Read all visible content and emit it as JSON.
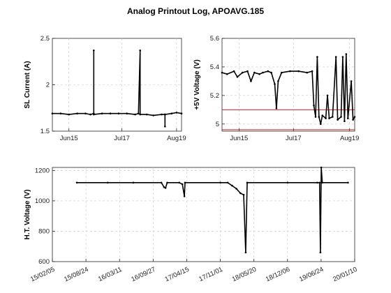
{
  "figure": {
    "title": "Analog Printout Log, APOAVG.185",
    "background": "#ffffff",
    "axis_color": "#262626",
    "grid_color": "#c8c8c8",
    "series_color": "#000000",
    "limit_color": "#c00000"
  },
  "chart_data": [
    {
      "type": "line",
      "panel": "top-left",
      "title": "",
      "ylabel": "SL Current (A)",
      "xlabel": "",
      "x_is_date": true,
      "xlim": [
        "2019-06-05",
        "2019-08-22"
      ],
      "ylim": [
        1.5,
        2.5
      ],
      "xticks": [
        {
          "value": "2019-06-15",
          "label": "Jun15"
        },
        {
          "value": "2019-07-17",
          "label": "Jul17"
        },
        {
          "value": "2019-08-19",
          "label": "Aug19"
        }
      ],
      "yticks": [
        {
          "value": 1.5,
          "label": "1.5"
        },
        {
          "value": 2,
          "label": "2"
        },
        {
          "value": 2.5,
          "label": "2.5"
        }
      ],
      "grid": true,
      "series": [
        {
          "values": [
            [
              "2019-06-05",
              1.69
            ],
            [
              "2019-06-10",
              1.69
            ],
            [
              "2019-06-15",
              1.68
            ],
            [
              "2019-06-20",
              1.69
            ],
            [
              "2019-06-25",
              1.69
            ],
            [
              "2019-06-28",
              1.68
            ],
            [
              "2019-06-30",
              1.69
            ],
            [
              "2019-06-30",
              2.37
            ],
            [
              "2019-06-30",
              1.68
            ],
            [
              "2019-07-05",
              1.69
            ],
            [
              "2019-07-10",
              1.69
            ],
            [
              "2019-07-15",
              1.69
            ],
            [
              "2019-07-20",
              1.69
            ],
            [
              "2019-07-25",
              1.68
            ],
            [
              "2019-07-27",
              1.69
            ],
            [
              "2019-07-28",
              2.37
            ],
            [
              "2019-07-28",
              1.68
            ],
            [
              "2019-08-01",
              1.68
            ],
            [
              "2019-08-05",
              1.67
            ],
            [
              "2019-08-10",
              1.68
            ],
            [
              "2019-08-12",
              1.68
            ],
            [
              "2019-08-12",
              1.55
            ],
            [
              "2019-08-12",
              1.68
            ],
            [
              "2019-08-16",
              1.69
            ],
            [
              "2019-08-19",
              1.7
            ],
            [
              "2019-08-22",
              1.69
            ]
          ]
        }
      ]
    },
    {
      "type": "line",
      "panel": "top-right",
      "title": "",
      "ylabel": "+5V Voltage (V)",
      "xlabel": "",
      "x_is_date": true,
      "xlim": [
        "2019-06-05",
        "2019-08-22"
      ],
      "ylim": [
        4.95,
        5.6
      ],
      "xticks": [
        {
          "value": "2019-06-15",
          "label": "Jun15"
        },
        {
          "value": "2019-07-17",
          "label": "Jul17"
        },
        {
          "value": "2019-08-19",
          "label": "Aug19"
        }
      ],
      "yticks": [
        {
          "value": 5,
          "label": "5"
        },
        {
          "value": 5.2,
          "label": "5.2"
        },
        {
          "value": 5.4,
          "label": "5.4"
        },
        {
          "value": 5.6,
          "label": "5.6"
        }
      ],
      "grid": true,
      "limits": [
        5.1,
        4.96
      ],
      "series": [
        {
          "values": [
            [
              "2019-06-05",
              5.36
            ],
            [
              "2019-06-08",
              5.35
            ],
            [
              "2019-06-12",
              5.37
            ],
            [
              "2019-06-14",
              5.33
            ],
            [
              "2019-06-17",
              5.36
            ],
            [
              "2019-06-20",
              5.37
            ],
            [
              "2019-06-22",
              5.3
            ],
            [
              "2019-06-24",
              5.36
            ],
            [
              "2019-06-27",
              5.35
            ],
            [
              "2019-06-29",
              5.36
            ],
            [
              "2019-07-02",
              5.37
            ],
            [
              "2019-07-04",
              5.36
            ],
            [
              "2019-07-06",
              5.28
            ],
            [
              "2019-07-07",
              5.11
            ],
            [
              "2019-07-08",
              5.3
            ],
            [
              "2019-07-10",
              5.36
            ],
            [
              "2019-07-15",
              5.37
            ],
            [
              "2019-07-20",
              5.37
            ],
            [
              "2019-07-25",
              5.36
            ],
            [
              "2019-07-28",
              5.37
            ],
            [
              "2019-07-29",
              5.13
            ],
            [
              "2019-07-30",
              5.05
            ],
            [
              "2019-07-31",
              5.47
            ],
            [
              "2019-08-01",
              5.05
            ],
            [
              "2019-08-02",
              5.0
            ],
            [
              "2019-08-03",
              5.06
            ],
            [
              "2019-08-05",
              5.04
            ],
            [
              "2019-08-06",
              5.2
            ],
            [
              "2019-08-07",
              5.04
            ],
            [
              "2019-08-09",
              5.05
            ],
            [
              "2019-08-11",
              5.47
            ],
            [
              "2019-08-12",
              5.03
            ],
            [
              "2019-08-14",
              5.05
            ],
            [
              "2019-08-15",
              5.47
            ],
            [
              "2019-08-16",
              5.02
            ],
            [
              "2019-08-17",
              5.49
            ],
            [
              "2019-08-18",
              5.04
            ],
            [
              "2019-08-20",
              5.3
            ],
            [
              "2019-08-21",
              5.03
            ],
            [
              "2019-08-22",
              5.05
            ]
          ]
        }
      ]
    },
    {
      "type": "line",
      "panel": "bottom",
      "title": "",
      "ylabel": "H.T. Voltage (V)",
      "xlabel": "",
      "x_is_date": true,
      "xlim": [
        "2015-02-05",
        "2020-01-10"
      ],
      "ylim": [
        600,
        1220
      ],
      "xticks": [
        {
          "value": "2015-02-05",
          "label": "15/02/05"
        },
        {
          "value": "2015-08-24",
          "label": "15/08/24"
        },
        {
          "value": "2016-03-11",
          "label": "16/03/11"
        },
        {
          "value": "2016-09-27",
          "label": "16/09/27"
        },
        {
          "value": "2017-04-15",
          "label": "17/04/15"
        },
        {
          "value": "2017-11-01",
          "label": "17/11/01"
        },
        {
          "value": "2018-05-20",
          "label": "18/05/20"
        },
        {
          "value": "2018-12-06",
          "label": "18/12/06"
        },
        {
          "value": "2019-06-24",
          "label": "19/06/24"
        },
        {
          "value": "2020-01-10",
          "label": "20/01/10"
        }
      ],
      "yticks": [
        {
          "value": 600,
          "label": "600"
        },
        {
          "value": 800,
          "label": "800"
        },
        {
          "value": 1000,
          "label": "1000"
        },
        {
          "value": 1200,
          "label": "1200"
        }
      ],
      "grid": true,
      "series": [
        {
          "values": [
            [
              "2015-07-01",
              1120
            ],
            [
              "2016-01-01",
              1120
            ],
            [
              "2016-06-01",
              1120
            ],
            [
              "2016-11-15",
              1120
            ],
            [
              "2016-12-01",
              1090
            ],
            [
              "2016-12-10",
              1085
            ],
            [
              "2016-12-20",
              1120
            ],
            [
              "2017-03-01",
              1120
            ],
            [
              "2017-03-20",
              1110
            ],
            [
              "2017-04-01",
              1030
            ],
            [
              "2017-04-05",
              1120
            ],
            [
              "2017-11-01",
              1120
            ],
            [
              "2017-12-15",
              1120
            ],
            [
              "2018-01-10",
              1100
            ],
            [
              "2018-02-05",
              1080
            ],
            [
              "2018-03-01",
              1050
            ],
            [
              "2018-03-20",
              1040
            ],
            [
              "2018-04-01",
              660
            ],
            [
              "2018-04-10",
              1120
            ],
            [
              "2018-12-06",
              1120
            ],
            [
              "2019-06-01",
              1120
            ],
            [
              "2019-06-15",
              1120
            ],
            [
              "2019-06-20",
              660
            ],
            [
              "2019-06-25",
              1220
            ],
            [
              "2019-07-01",
              1120
            ],
            [
              "2019-12-01",
              1120
            ]
          ]
        }
      ]
    }
  ]
}
